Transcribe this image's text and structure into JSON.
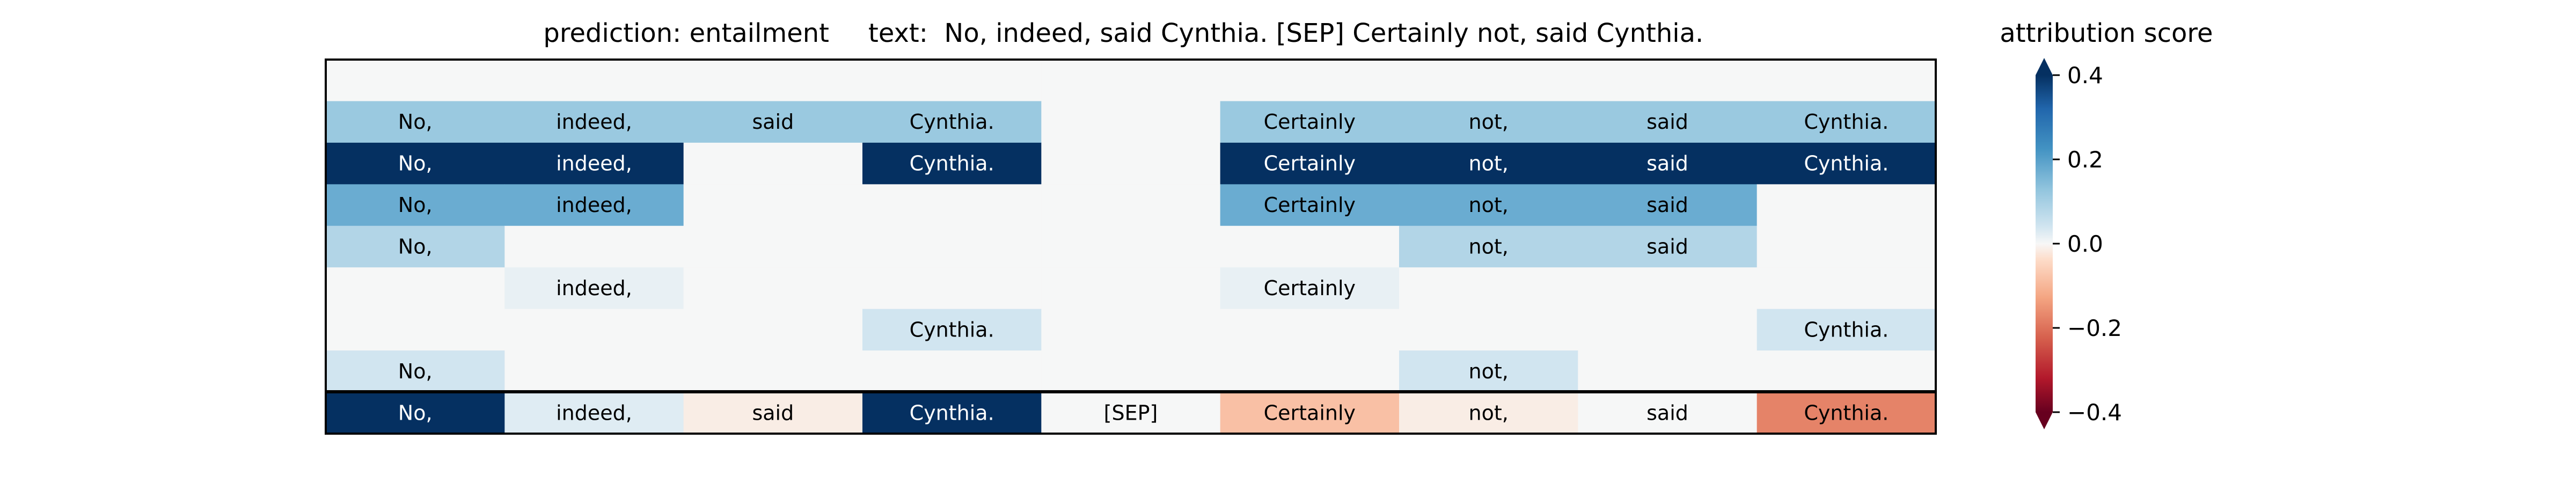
{
  "chart_data": {
    "type": "heatmap",
    "title_prediction": "prediction:  entailment",
    "title_text": "text:  No, indeed, said Cynthia. [SEP] Certainly not, said Cynthia.",
    "tokens": [
      "No,",
      "indeed,",
      "said",
      "Cynthia.",
      "[SEP]",
      "Certainly",
      "not,",
      "said",
      "Cynthia."
    ],
    "rows": [
      [
        0,
        0,
        0,
        0,
        0,
        0,
        0,
        0,
        0
      ],
      [
        0.15,
        0.15,
        0.15,
        0.15,
        0,
        0.15,
        0.15,
        0.15,
        0.15
      ],
      [
        0.4,
        0.4,
        0,
        0.4,
        0,
        0.4,
        0.4,
        0.4,
        0.4
      ],
      [
        0.2,
        0.2,
        0,
        0,
        0,
        0.2,
        0.2,
        0.2,
        0
      ],
      [
        0.12,
        0,
        0,
        0,
        0,
        0,
        0.12,
        0.12,
        0
      ],
      [
        0,
        0.03,
        0,
        0,
        0,
        0.03,
        0,
        0,
        0
      ],
      [
        0,
        0,
        0,
        0.08,
        0,
        0,
        0,
        0,
        0.08
      ],
      [
        0.08,
        0,
        0,
        0,
        0,
        0,
        0.08,
        0,
        0
      ]
    ],
    "aggregate_row": [
      0.4,
      0.05,
      -0.03,
      0.4,
      0,
      -0.12,
      -0.03,
      0,
      -0.2
    ],
    "colorbar": {
      "label": "attribution score",
      "ticks": [
        "0.4",
        "0.2",
        "0.0",
        "−0.2",
        "−0.4"
      ],
      "vmin": -0.4,
      "vmax": 0.4,
      "colormap": "RdBu"
    }
  }
}
